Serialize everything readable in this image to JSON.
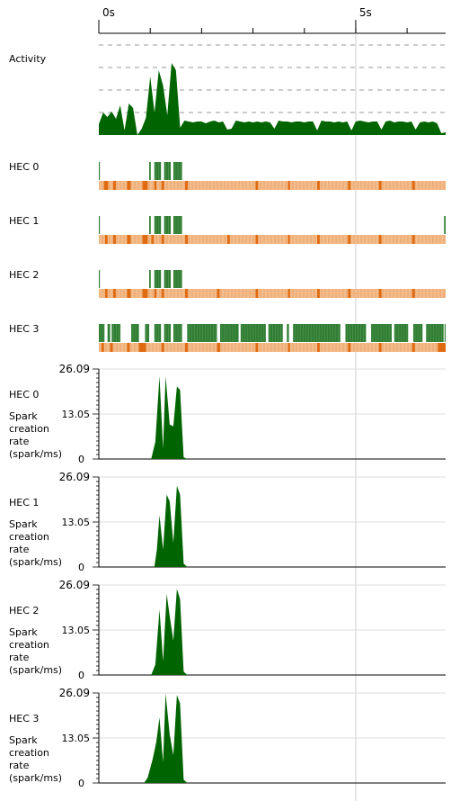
{
  "ruler": {
    "ticks": [
      {
        "label": "0s",
        "t": 0
      },
      {
        "label": "5s",
        "t": 5
      }
    ],
    "total_seconds": 6.75,
    "minor_step": 1
  },
  "activity": {
    "label": "Activity",
    "samples": [
      0.12,
      0.25,
      0.2,
      0.26,
      0.18,
      0.33,
      0.05,
      0.35,
      0.3,
      0.0,
      0.07,
      0.19,
      0.65,
      0.25,
      0.72,
      0.55,
      0.22,
      0.8,
      0.72,
      0.08,
      0.16,
      0.15,
      0.14,
      0.15,
      0.15,
      0.13,
      0.15,
      0.16,
      0.14,
      0.15,
      0.06,
      0.07,
      0.16,
      0.15,
      0.14,
      0.15,
      0.14,
      0.15,
      0.14,
      0.15,
      0.14,
      0.07,
      0.16,
      0.15,
      0.15,
      0.14,
      0.15,
      0.15,
      0.14,
      0.15,
      0.15,
      0.05,
      0.16,
      0.15,
      0.15,
      0.14,
      0.15,
      0.14,
      0.15,
      0.05,
      0.15,
      0.16,
      0.15,
      0.14,
      0.15,
      0.15,
      0.06,
      0.15,
      0.16,
      0.14,
      0.15,
      0.15,
      0.14,
      0.15,
      0.06,
      0.14,
      0.15,
      0.14,
      0.15,
      0.13,
      0.02,
      0.03
    ]
  },
  "hecs": [
    {
      "label": "HEC 0",
      "green": [
        [
          0,
          0.02
        ],
        [
          0.98,
          1.01
        ],
        [
          1.08,
          1.21
        ],
        [
          1.27,
          1.4
        ],
        [
          1.45,
          1.62
        ]
      ],
      "gc_light": [
        [
          0,
          6.75
        ]
      ],
      "gc_dark": [
        [
          0.1,
          0.18
        ],
        [
          0.28,
          0.33
        ],
        [
          0.55,
          0.62
        ],
        [
          0.85,
          0.95
        ],
        [
          1.08,
          1.12
        ],
        [
          1.22,
          1.27
        ],
        [
          1.68,
          1.73
        ],
        [
          3.05,
          3.1
        ],
        [
          3.68,
          3.72
        ],
        [
          4.25,
          4.3
        ],
        [
          4.85,
          4.9
        ],
        [
          5.45,
          5.5
        ],
        [
          6.1,
          6.15
        ]
      ]
    },
    {
      "label": "HEC 1",
      "green": [
        [
          0,
          0.02
        ],
        [
          0.98,
          1.01
        ],
        [
          1.08,
          1.21
        ],
        [
          1.27,
          1.4
        ],
        [
          1.45,
          1.62
        ],
        [
          6.72,
          6.75
        ]
      ],
      "gc_light": [
        [
          0,
          6.75
        ]
      ],
      "gc_dark": [
        [
          0.12,
          0.17
        ],
        [
          0.28,
          0.33
        ],
        [
          0.55,
          0.62
        ],
        [
          0.85,
          0.95
        ],
        [
          1.02,
          1.07
        ],
        [
          1.22,
          1.27
        ],
        [
          1.68,
          1.73
        ],
        [
          2.5,
          2.55
        ],
        [
          3.05,
          3.1
        ],
        [
          3.68,
          3.72
        ],
        [
          4.25,
          4.3
        ],
        [
          4.85,
          4.9
        ],
        [
          5.45,
          5.5
        ],
        [
          6.1,
          6.15
        ]
      ]
    },
    {
      "label": "HEC 2",
      "green": [
        [
          0,
          0.02
        ],
        [
          0.98,
          1.01
        ],
        [
          1.08,
          1.21
        ],
        [
          1.27,
          1.4
        ],
        [
          1.45,
          1.62
        ]
      ],
      "gc_light": [
        [
          0,
          6.75
        ]
      ],
      "gc_dark": [
        [
          0.12,
          0.17
        ],
        [
          0.28,
          0.33
        ],
        [
          0.55,
          0.62
        ],
        [
          0.85,
          0.95
        ],
        [
          1.08,
          1.12
        ],
        [
          1.22,
          1.27
        ],
        [
          1.68,
          1.73
        ],
        [
          2.3,
          2.35
        ],
        [
          3.05,
          3.1
        ],
        [
          3.68,
          3.72
        ],
        [
          4.25,
          4.3
        ],
        [
          4.85,
          4.9
        ],
        [
          5.45,
          5.5
        ],
        [
          6.1,
          6.15
        ]
      ]
    },
    {
      "label": "HEC 3",
      "green": [
        [
          0,
          0.11
        ],
        [
          0.17,
          0.22
        ],
        [
          0.25,
          0.42
        ],
        [
          0.63,
          0.78
        ],
        [
          0.9,
          0.98
        ],
        [
          1.08,
          1.21
        ],
        [
          1.27,
          1.4
        ],
        [
          1.45,
          1.62
        ],
        [
          1.72,
          2.3
        ],
        [
          2.36,
          2.72
        ],
        [
          2.76,
          3.25
        ],
        [
          3.3,
          3.58
        ],
        [
          3.66,
          3.7
        ],
        [
          3.78,
          4.7
        ],
        [
          4.8,
          5.2
        ],
        [
          5.3,
          5.7
        ],
        [
          5.75,
          6.02
        ],
        [
          6.12,
          6.3
        ],
        [
          6.37,
          6.71
        ],
        [
          6.73,
          6.75
        ]
      ],
      "gc_light": [
        [
          0,
          6.75
        ]
      ],
      "gc_dark": [
        [
          0.05,
          0.1
        ],
        [
          0.22,
          0.27
        ],
        [
          0.55,
          0.6
        ],
        [
          0.78,
          0.92
        ],
        [
          1.22,
          1.27
        ],
        [
          1.68,
          1.73
        ],
        [
          2.3,
          2.36
        ],
        [
          3.05,
          3.1
        ],
        [
          3.68,
          3.72
        ],
        [
          4.25,
          4.3
        ],
        [
          4.85,
          4.9
        ],
        [
          5.45,
          5.5
        ],
        [
          6.1,
          6.15
        ],
        [
          6.6,
          6.75
        ]
      ]
    }
  ],
  "spark_charts": [
    {
      "hec_label": "HEC 0",
      "metric_label": [
        "Spark",
        "creation",
        "rate",
        "(spark/ms)"
      ],
      "y_max_label": "26.09",
      "y_mid_label": "13.05",
      "y_zero_label": "0",
      "ylim": [
        0,
        26.09
      ],
      "points": [
        [
          0,
          0
        ],
        [
          1.02,
          0
        ],
        [
          1.1,
          5
        ],
        [
          1.18,
          24
        ],
        [
          1.25,
          3
        ],
        [
          1.3,
          24
        ],
        [
          1.38,
          10
        ],
        [
          1.45,
          9.5
        ],
        [
          1.52,
          21
        ],
        [
          1.58,
          20
        ],
        [
          1.65,
          0.5
        ],
        [
          1.72,
          0
        ],
        [
          6.75,
          0
        ]
      ]
    },
    {
      "hec_label": "HEC 1",
      "metric_label": [
        "Spark",
        "creation",
        "rate",
        "(spark/ms)"
      ],
      "y_max_label": "26.09",
      "y_mid_label": "13.05",
      "y_zero_label": "0",
      "ylim": [
        0,
        26.09
      ],
      "points": [
        [
          0,
          0
        ],
        [
          1.08,
          0
        ],
        [
          1.13,
          5
        ],
        [
          1.18,
          15
        ],
        [
          1.25,
          5
        ],
        [
          1.32,
          21
        ],
        [
          1.38,
          19
        ],
        [
          1.45,
          7
        ],
        [
          1.52,
          23.5
        ],
        [
          1.58,
          21
        ],
        [
          1.65,
          1
        ],
        [
          1.72,
          0
        ],
        [
          6.75,
          0
        ]
      ]
    },
    {
      "hec_label": "HEC 2",
      "metric_label": [
        "Spark",
        "creation",
        "rate",
        "(spark/ms)"
      ],
      "y_max_label": "26.09",
      "y_mid_label": "13.05",
      "y_zero_label": "0",
      "ylim": [
        0,
        26.09
      ],
      "points": [
        [
          0,
          0
        ],
        [
          1.02,
          0
        ],
        [
          1.1,
          3
        ],
        [
          1.18,
          19
        ],
        [
          1.25,
          4
        ],
        [
          1.32,
          23.5
        ],
        [
          1.38,
          17
        ],
        [
          1.45,
          10
        ],
        [
          1.52,
          25
        ],
        [
          1.58,
          22
        ],
        [
          1.65,
          1
        ],
        [
          1.72,
          0
        ],
        [
          6.75,
          0
        ]
      ]
    },
    {
      "hec_label": "HEC 3",
      "metric_label": [
        "Spark",
        "creation",
        "rate",
        "(spark/ms)"
      ],
      "y_max_label": "26.09",
      "y_mid_label": "13.05",
      "y_zero_label": "0",
      "ylim": [
        0,
        26.09
      ],
      "points": [
        [
          0,
          0
        ],
        [
          0.88,
          0
        ],
        [
          0.95,
          1.5
        ],
        [
          1.05,
          7
        ],
        [
          1.12,
          12
        ],
        [
          1.18,
          19
        ],
        [
          1.25,
          6
        ],
        [
          1.3,
          26
        ],
        [
          1.38,
          14
        ],
        [
          1.45,
          8
        ],
        [
          1.52,
          25.5
        ],
        [
          1.58,
          23
        ],
        [
          1.65,
          1
        ],
        [
          1.72,
          0
        ],
        [
          6.75,
          0
        ]
      ]
    }
  ],
  "colors": {
    "axis": "#000000",
    "grid": "#dcdcdc",
    "dash": "#999999",
    "green": "#006400",
    "green_bar": "#2e7d32",
    "gc_light": "#f0b07a",
    "gc_dark": "#e06a10",
    "cursor": "#cfcfcf"
  }
}
